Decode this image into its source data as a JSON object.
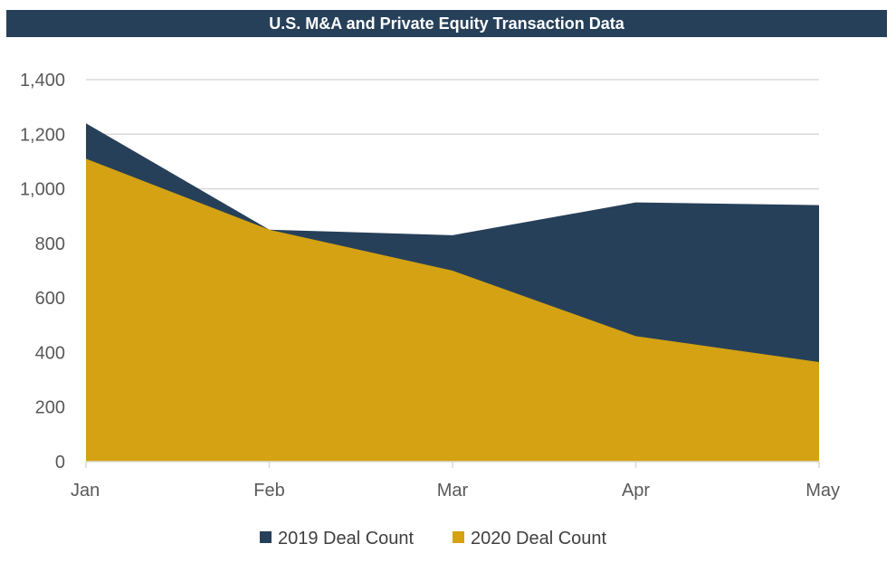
{
  "chart_data": {
    "type": "area",
    "title": "U.S. M&A and Private Equity Transaction Data",
    "categories": [
      "Jan",
      "Feb",
      "Mar",
      "Apr",
      "May"
    ],
    "series": [
      {
        "name": "2019 Deal Count",
        "values": [
          1240,
          850,
          830,
          950,
          940
        ],
        "color": "#27405a"
      },
      {
        "name": "2020 Deal Count",
        "values": [
          1110,
          850,
          700,
          460,
          365
        ],
        "color": "#d4a212"
      }
    ],
    "ylim": [
      0,
      1400
    ],
    "yticks": [
      "0",
      "200",
      "400",
      "600",
      "800",
      "1,000",
      "1,200",
      "1,400"
    ],
    "ytick_values": [
      0,
      200,
      400,
      600,
      800,
      1000,
      1200,
      1400
    ],
    "grid": true,
    "legend_position": "bottom",
    "xlabel": "",
    "ylabel": ""
  }
}
